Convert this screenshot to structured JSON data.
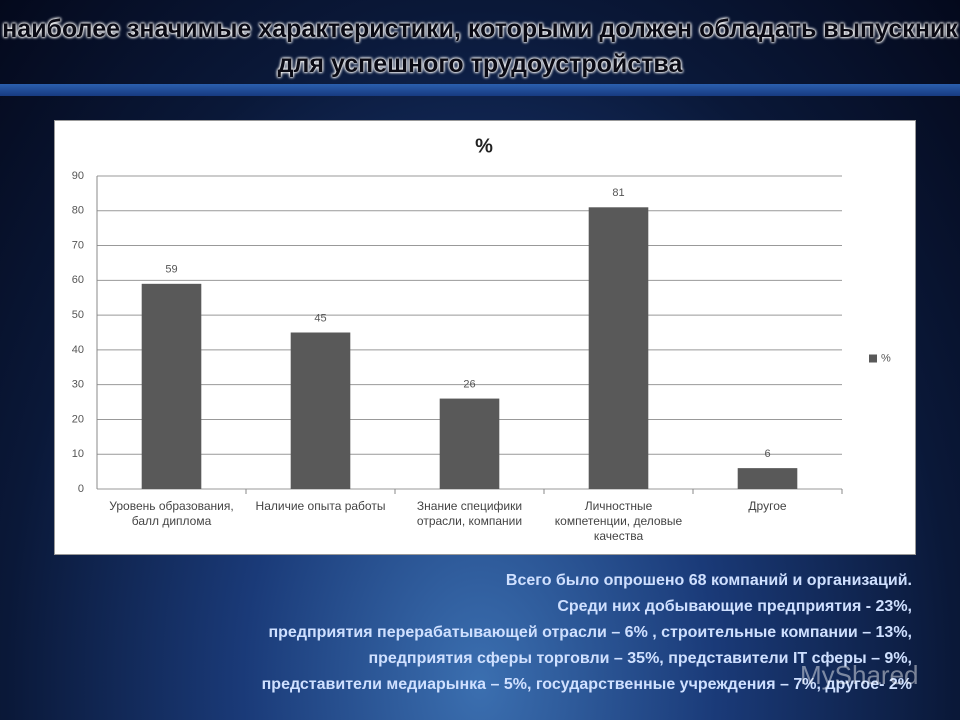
{
  "slide": {
    "title": "наиболее значимые характеристики, которыми должен обладать выпускник для успешного трудоустройства",
    "notes": [
      "Всего было опрошено 68 компаний и организаций.",
      "Среди них добывающие предприятия - 23%,",
      "предприятия перерабатывающей отрасли – 6% , строительные компании – 13%,",
      "предприятия сферы торговли – 35%, представители IT сферы – 9%,",
      "представители медиарынка – 5%, государственные учреждения – 7%, другое- 2%"
    ],
    "watermark": "MyShared"
  },
  "chart_data": {
    "type": "bar",
    "title": "%",
    "categories": [
      "Уровень образования, балл диплома",
      "Наличие опыта работы",
      "Знание специфики отрасли, компании",
      "Личностные компетенции, деловые качества",
      "Другое"
    ],
    "series": [
      {
        "name": "%",
        "color": "#595959",
        "values": [
          59,
          45,
          26,
          81,
          6
        ]
      }
    ],
    "ylim": [
      0,
      90
    ],
    "yticks": [
      0,
      10,
      20,
      30,
      40,
      50,
      60,
      70,
      80,
      90
    ],
    "grid": true,
    "legend": "right"
  }
}
